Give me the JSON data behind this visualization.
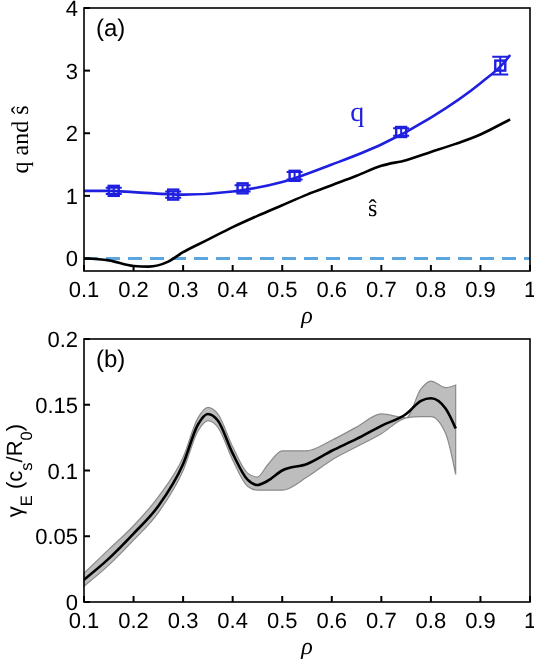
{
  "chart_data": [
    {
      "type": "line",
      "ylabel": "q and ŝ",
      "xlabel": "ρ",
      "annotations": [
        "(a)"
      ],
      "xlim": [
        0.1,
        1
      ],
      "ylim": [
        -0.2,
        4
      ],
      "xticks": [
        0.1,
        0.2,
        0.3,
        0.4,
        0.5,
        0.6,
        0.7,
        0.8,
        0.9,
        {
          "value": 1,
          "label": "1"
        }
      ],
      "yticks": [
        0,
        1,
        2,
        3,
        4
      ],
      "ref_lines": [
        {
          "axis": "y",
          "value": 0,
          "color": "#5aa6e0",
          "line_style": "dashed"
        }
      ],
      "series": [
        {
          "type": "scatter",
          "color": "#1f1fe0",
          "marker": "square",
          "x": [
            0.16,
            0.28,
            0.42,
            0.525,
            0.74,
            0.94
          ],
          "values": [
            1.08,
            1.02,
            1.12,
            1.32,
            2.02,
            3.08
          ],
          "errors": [
            0.05,
            0.05,
            0.05,
            0.06,
            0.06,
            0.14
          ]
        },
        {
          "name": "q",
          "color": "#1f1fe0",
          "x": [
            0.1,
            0.15,
            0.2,
            0.3,
            0.4,
            0.5,
            0.6,
            0.7,
            0.8,
            0.9,
            0.95,
            0.96
          ],
          "values": [
            1.08,
            1.08,
            1.06,
            1.02,
            1.07,
            1.22,
            1.5,
            1.82,
            2.25,
            2.8,
            3.15,
            3.25
          ]
        },
        {
          "name": "ŝ",
          "color": "#000000",
          "x": [
            0.1,
            0.15,
            0.2,
            0.23,
            0.27,
            0.3,
            0.35,
            0.4,
            0.45,
            0.5,
            0.55,
            0.6,
            0.65,
            0.7,
            0.75,
            0.8,
            0.85,
            0.9,
            0.95,
            0.96
          ],
          "values": [
            0,
            -0.03,
            -0.12,
            -0.13,
            -0.05,
            0.1,
            0.3,
            0.5,
            0.68,
            0.85,
            1.02,
            1.17,
            1.32,
            1.48,
            1.57,
            1.7,
            1.83,
            1.98,
            2.18,
            2.22
          ]
        }
      ]
    },
    {
      "type": "line",
      "ylabel": "γ$_{E}$ (c$_{s}$/R$_{0}$)",
      "xlabel": "ρ",
      "annotations": [
        "(b)"
      ],
      "xlim": [
        0.1,
        1
      ],
      "ylim": [
        0,
        0.2
      ],
      "xticks": [
        0.1,
        0.2,
        0.3,
        0.4,
        0.5,
        0.6,
        0.7,
        0.8,
        0.9,
        {
          "value": 1,
          "label": "1"
        }
      ],
      "yticks": [
        0,
        0.05,
        0.1,
        0.15,
        0.2
      ],
      "series": [
        {
          "color": "#000000",
          "x": [
            0.1,
            0.15,
            0.2,
            0.25,
            0.3,
            0.33,
            0.35,
            0.37,
            0.4,
            0.43,
            0.45,
            0.47,
            0.5,
            0.55,
            0.6,
            0.65,
            0.7,
            0.75,
            0.78,
            0.8,
            0.83,
            0.85
          ],
          "values": [
            0.017,
            0.033,
            0.052,
            0.073,
            0.105,
            0.135,
            0.143,
            0.138,
            0.113,
            0.093,
            0.089,
            0.092,
            0.1,
            0.105,
            0.115,
            0.124,
            0.134,
            0.143,
            0.153,
            0.155,
            0.147,
            0.132
          ],
          "lower": [
            0.012,
            0.028,
            0.047,
            0.068,
            0.1,
            0.13,
            0.138,
            0.133,
            0.108,
            0.088,
            0.085,
            0.085,
            0.085,
            0.095,
            0.108,
            0.118,
            0.128,
            0.14,
            0.141,
            0.141,
            0.128,
            0.097
          ],
          "upper": [
            0.022,
            0.04,
            0.058,
            0.08,
            0.11,
            0.14,
            0.148,
            0.143,
            0.118,
            0.098,
            0.095,
            0.104,
            0.115,
            0.115,
            0.123,
            0.133,
            0.143,
            0.14,
            0.162,
            0.168,
            0.163,
            0.165
          ]
        }
      ]
    }
  ]
}
